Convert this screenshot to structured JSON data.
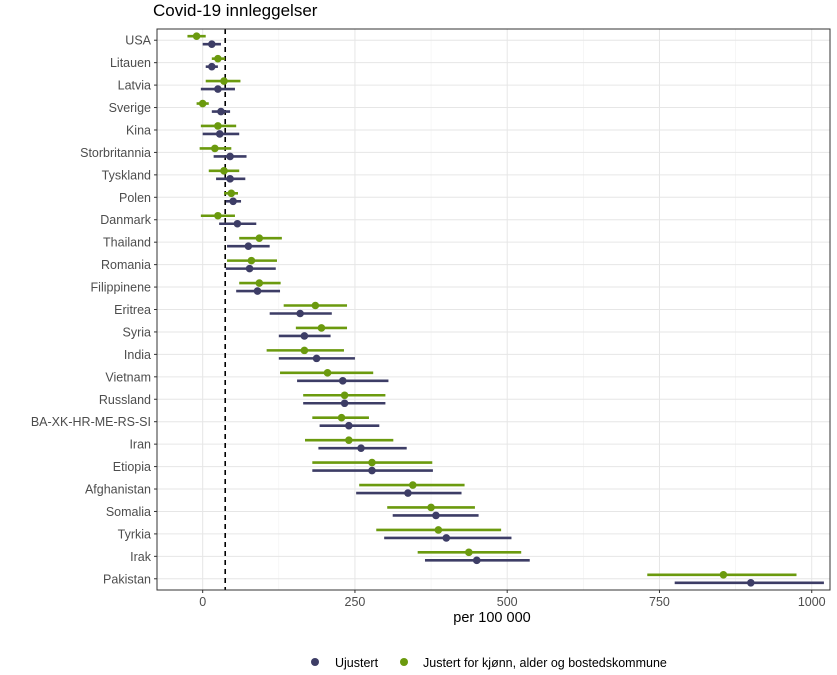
{
  "chart_data": {
    "type": "dot-interval",
    "title": "Covid-19 innleggelser",
    "xlabel": "per 100 000",
    "ylabel": "",
    "xlim": [
      -75,
      1030
    ],
    "xticks": [
      0,
      250,
      500,
      750,
      1000
    ],
    "reference_line": 37,
    "categories": [
      "USA",
      "Litauen",
      "Latvia",
      "Sverige",
      "Kina",
      "Storbritannia",
      "Tyskland",
      "Polen",
      "Danmark",
      "Thailand",
      "Romania",
      "Filippinene",
      "Eritrea",
      "Syria",
      "India",
      "Vietnam",
      "Russland",
      "BA-XK-HR-ME-RS-SI",
      "Iran",
      "Etiopia",
      "Afghanistan",
      "Somalia",
      "Tyrkia",
      "Irak",
      "Pakistan"
    ],
    "series": [
      {
        "name": "Ujustert",
        "color": "#3d3d66",
        "values": [
          15,
          15,
          25,
          30,
          28,
          45,
          45,
          50,
          57,
          75,
          77,
          90,
          160,
          167,
          187,
          230,
          233,
          240,
          260,
          278,
          337,
          383,
          400,
          450,
          900
        ],
        "lower": [
          0,
          5,
          -3,
          15,
          0,
          18,
          22,
          38,
          27,
          40,
          38,
          55,
          110,
          125,
          125,
          155,
          165,
          192,
          190,
          180,
          252,
          312,
          298,
          365,
          775
        ],
        "upper": [
          30,
          25,
          53,
          45,
          60,
          72,
          70,
          63,
          88,
          110,
          120,
          127,
          212,
          210,
          250,
          305,
          300,
          290,
          335,
          378,
          425,
          453,
          507,
          537,
          1020
        ]
      },
      {
        "name": "Justert for kjønn, alder og bostedskommune",
        "color": "#6b9a0e",
        "values": [
          -10,
          25,
          35,
          0,
          25,
          20,
          35,
          47,
          25,
          93,
          80,
          93,
          185,
          195,
          167,
          205,
          233,
          228,
          240,
          278,
          345,
          375,
          387,
          437,
          855
        ],
        "lower": [
          -25,
          15,
          5,
          -10,
          -3,
          -5,
          10,
          35,
          -3,
          60,
          40,
          60,
          133,
          153,
          105,
          127,
          165,
          180,
          168,
          180,
          257,
          303,
          285,
          353,
          730
        ],
        "upper": [
          5,
          37,
          62,
          10,
          55,
          47,
          60,
          58,
          53,
          130,
          122,
          128,
          237,
          237,
          232,
          280,
          300,
          273,
          313,
          377,
          430,
          447,
          490,
          523,
          975
        ]
      }
    ],
    "legend_position": "bottom"
  }
}
